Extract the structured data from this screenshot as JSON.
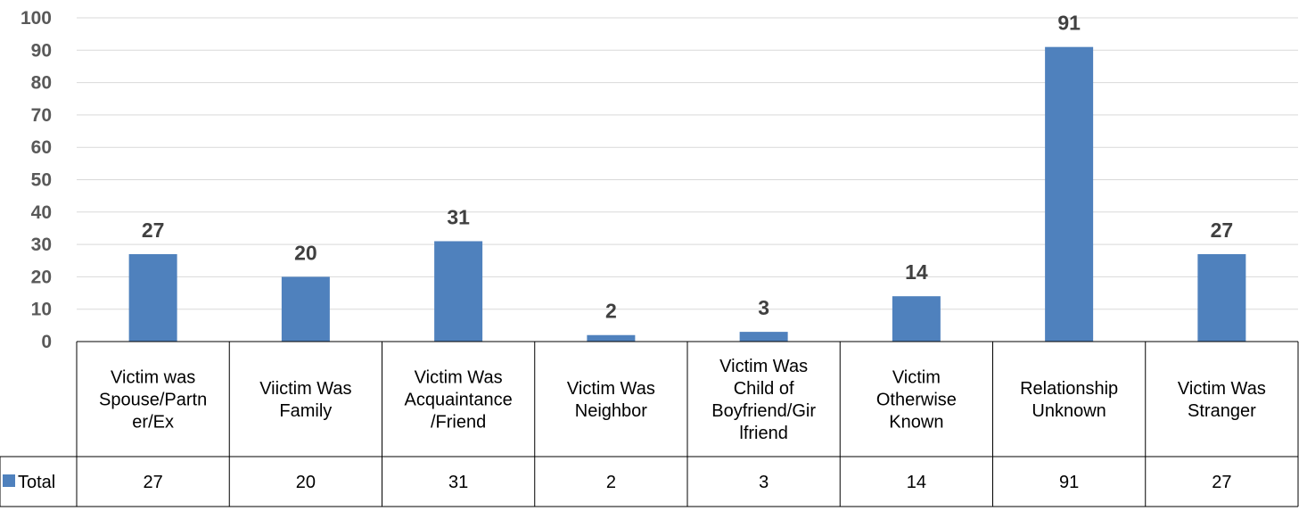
{
  "chart_data": {
    "type": "bar",
    "categories": [
      [
        "Victim was",
        "Spouse/Partn",
        "er/Ex"
      ],
      [
        "Viictim Was",
        "Family"
      ],
      [
        "Victim Was",
        "Acquaintance",
        "/Friend"
      ],
      [
        "Victim Was",
        "Neighbor"
      ],
      [
        "Victim Was",
        "Child of",
        "Boyfriend/Gir",
        "lfriend"
      ],
      [
        "Victim",
        "Otherwise",
        "Known"
      ],
      [
        "Relationship",
        "Unknown"
      ],
      [
        "Victim Was",
        "Stranger"
      ]
    ],
    "series": [
      {
        "name": "Total",
        "values": [
          27,
          20,
          31,
          2,
          3,
          14,
          91,
          27
        ]
      }
    ],
    "ylim": [
      0,
      100
    ],
    "yticks": [
      0,
      10,
      20,
      30,
      40,
      50,
      60,
      70,
      80,
      90,
      100
    ],
    "grid": true,
    "data_labels": true,
    "data_table": true,
    "colors": {
      "bar": "#4f81bd",
      "grid": "#d9d9d9",
      "table_border": "#000000"
    }
  }
}
